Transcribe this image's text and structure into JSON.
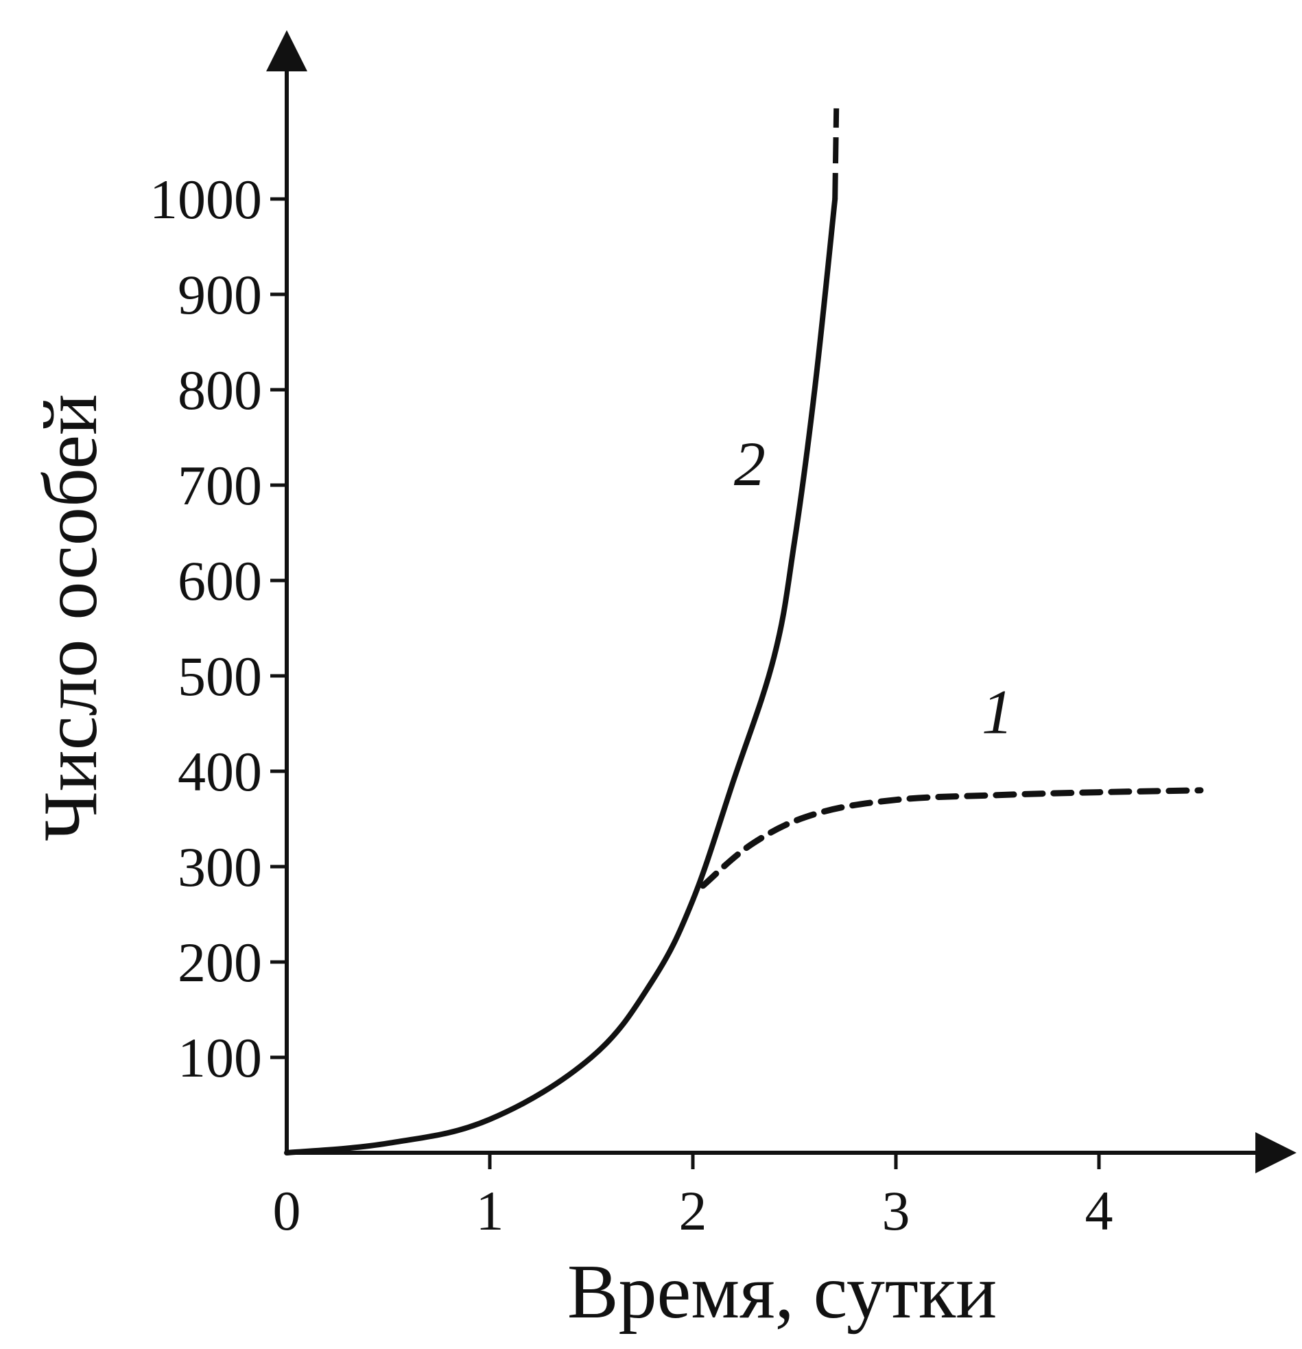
{
  "chart_data": {
    "type": "line",
    "title": "",
    "xlabel": "Время, сутки",
    "ylabel": "Число особей",
    "xlim": [
      0,
      4.6
    ],
    "ylim": [
      0,
      1100
    ],
    "x_ticks": [
      "0",
      "1",
      "2",
      "3",
      "4"
    ],
    "y_ticks": [
      "100",
      "200",
      "300",
      "400",
      "500",
      "600",
      "700",
      "800",
      "900",
      "1000"
    ],
    "grid": false,
    "legend": "none",
    "series": [
      {
        "name": "2",
        "style": "solid",
        "x": [
          0,
          0.5,
          1.0,
          1.5,
          1.8,
          2.0,
          2.2,
          2.4,
          2.5,
          2.6,
          2.7
        ],
        "y": [
          0,
          10,
          35,
          100,
          180,
          265,
          390,
          520,
          640,
          800,
          1000
        ]
      },
      {
        "name": "1",
        "style": "dashed",
        "x": [
          2.05,
          2.3,
          2.6,
          3.0,
          3.5,
          4.0,
          4.5
        ],
        "y": [
          280,
          325,
          355,
          370,
          375,
          378,
          380
        ]
      }
    ],
    "annotations": [
      {
        "text": "2",
        "x": 2.28,
        "y": 700
      },
      {
        "text": "1",
        "x": 3.5,
        "y": 440
      }
    ],
    "colors": {
      "ink": "#111111",
      "background": "#ffffff"
    }
  }
}
